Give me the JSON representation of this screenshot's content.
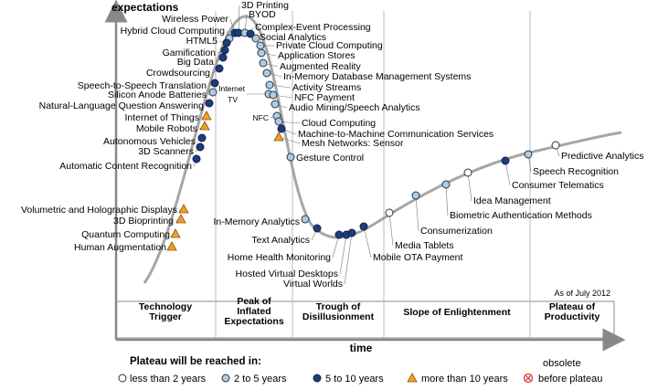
{
  "chart_data": {
    "type": "scatter",
    "title": "",
    "ylabel": "expectations",
    "xlabel": "time",
    "as_of": "As of July 2012",
    "phases": [
      "Technology\nTrigger",
      "Peak of\nInflated\nExpectations",
      "Trough of\nDisillusionment",
      "Slope of Enlightenment",
      "Plateau of\nProductivity"
    ],
    "legend": {
      "title": "Plateau will be reached in:",
      "items": [
        {
          "key": "lt2",
          "label": "less than 2 years"
        },
        {
          "key": "2to5",
          "label": "2 to 5 years"
        },
        {
          "key": "5to10",
          "label": "5 to 10 years"
        },
        {
          "key": "gt10",
          "label": "more than 10 years"
        },
        {
          "key": "obsolete",
          "label": "before plateau",
          "note": "obsolete"
        }
      ]
    },
    "colors": {
      "lt2": "#ffffff",
      "2to5": "#a9cdea",
      "5to10": "#1f3b7a",
      "gt10": "#f0a02a",
      "obsolete": "#d92b2b",
      "curve": "#a6a6a6",
      "axis": "#888888"
    },
    "technologies": [
      {
        "name": "Wireless Power",
        "category": "5to10"
      },
      {
        "name": "Hybrid Cloud Computing",
        "category": "2to5"
      },
      {
        "name": "HTML5",
        "category": "5to10"
      },
      {
        "name": "Gamification",
        "category": "5to10"
      },
      {
        "name": "Big Data",
        "category": "5to10"
      },
      {
        "name": "Crowdsourcing",
        "category": "5to10"
      },
      {
        "name": "Speech-to-Speech Translation",
        "category": "5to10"
      },
      {
        "name": "Silicon Anode Batteries",
        "category": "2to5"
      },
      {
        "name": "Natural-Language Question Answering",
        "category": "5to10"
      },
      {
        "name": "Internet of Things",
        "category": "gt10"
      },
      {
        "name": "Mobile Robots",
        "category": "gt10"
      },
      {
        "name": "Autonomous Vehicles",
        "category": "5to10"
      },
      {
        "name": "3D Scanners",
        "category": "5to10"
      },
      {
        "name": "Automatic Content Recognition",
        "category": "5to10"
      },
      {
        "name": "Volumetric and Holographic Displays",
        "category": "gt10"
      },
      {
        "name": "3D Bioprinting",
        "category": "gt10"
      },
      {
        "name": "Quantum Computing",
        "category": "gt10"
      },
      {
        "name": "Human Augmentation",
        "category": "gt10"
      },
      {
        "name": "3D Printing",
        "category": "5to10"
      },
      {
        "name": "BYOD",
        "category": "2to5"
      },
      {
        "name": "Complex-Event Processing",
        "category": "5to10"
      },
      {
        "name": "Social Analytics",
        "category": "2to5"
      },
      {
        "name": "Private Cloud Computing",
        "category": "2to5"
      },
      {
        "name": "Application Stores",
        "category": "2to5"
      },
      {
        "name": "Augmented Reality",
        "category": "2to5"
      },
      {
        "name": "In-Memory Database Management Systems",
        "category": "2to5"
      },
      {
        "name": "Activity Streams",
        "category": "2to5"
      },
      {
        "name": "Internet TV",
        "category": "2to5"
      },
      {
        "name": "NFC Payment",
        "category": "2to5"
      },
      {
        "name": "Audio Mining/Speech Analytics",
        "category": "2to5"
      },
      {
        "name": "NFC",
        "category": "2to5"
      },
      {
        "name": "Cloud Computing",
        "category": "2to5"
      },
      {
        "name": "Machine-to-Machine Communication Services",
        "category": "5to10"
      },
      {
        "name": "Mesh Networks: Sensor",
        "category": "gt10"
      },
      {
        "name": "Gesture Control",
        "category": "2to5"
      },
      {
        "name": "In-Memory Analytics",
        "category": "2to5"
      },
      {
        "name": "Text Analytics",
        "category": "5to10"
      },
      {
        "name": "Home Health Monitoring",
        "category": "5to10"
      },
      {
        "name": "Hosted Virtual Desktops",
        "category": "5to10"
      },
      {
        "name": "Virtual Worlds",
        "category": "5to10"
      },
      {
        "name": "Mobile OTA Payment",
        "category": "5to10"
      },
      {
        "name": "Media Tablets",
        "category": "lt2"
      },
      {
        "name": "Consumerization",
        "category": "2to5"
      },
      {
        "name": "Biometric Authentication Methods",
        "category": "2to5"
      },
      {
        "name": "Idea Management",
        "category": "lt2"
      },
      {
        "name": "Consumer Telematics",
        "category": "5to10"
      },
      {
        "name": "Speech Recognition",
        "category": "2to5"
      },
      {
        "name": "Predictive Analytics",
        "category": "lt2"
      }
    ]
  }
}
